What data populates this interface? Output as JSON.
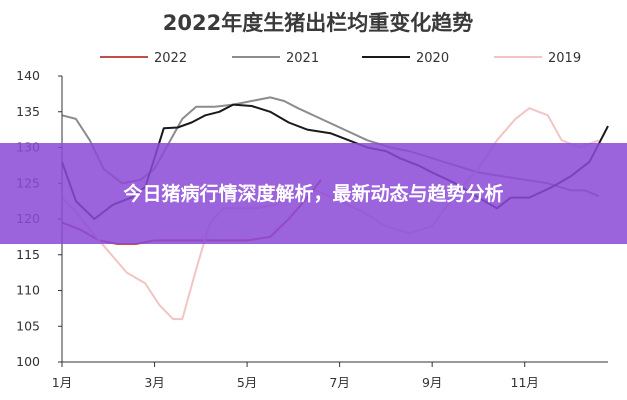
{
  "chart_data": {
    "type": "line",
    "title": "2022年度生猪出栏均重变化趋势",
    "xlabel": "",
    "ylabel": "",
    "ylim": [
      100,
      140
    ],
    "yticks": [
      100,
      105,
      110,
      115,
      120,
      125,
      130,
      135,
      140
    ],
    "xlim": [
      1,
      12.8
    ],
    "xticks": [
      {
        "value": 1,
        "label": "1月"
      },
      {
        "value": 3,
        "label": "3月"
      },
      {
        "value": 5,
        "label": "5月"
      },
      {
        "value": 7,
        "label": "7月"
      },
      {
        "value": 9,
        "label": "9月"
      },
      {
        "value": 11,
        "label": "11月"
      }
    ],
    "grid": false,
    "legend_position": "top",
    "series": [
      {
        "name": "2022",
        "color": "#c0504d",
        "points": [
          [
            1,
            119.5
          ],
          [
            1.4,
            118.5
          ],
          [
            1.8,
            117
          ],
          [
            2.2,
            116.5
          ],
          [
            2.6,
            116.5
          ],
          [
            3,
            117
          ],
          [
            3.5,
            117
          ],
          [
            4,
            117
          ],
          [
            4.5,
            117
          ],
          [
            5,
            117
          ],
          [
            5.5,
            117.5
          ],
          [
            5.9,
            120
          ],
          [
            6.3,
            123
          ],
          [
            6.6,
            125.5
          ]
        ]
      },
      {
        "name": "2021",
        "color": "#8c8c8c",
        "points": [
          [
            1,
            134.5
          ],
          [
            1.3,
            134
          ],
          [
            1.6,
            131
          ],
          [
            1.9,
            127
          ],
          [
            2.3,
            125
          ],
          [
            2.7,
            125.5
          ],
          [
            3,
            127
          ],
          [
            3.3,
            130.5
          ],
          [
            3.6,
            134
          ],
          [
            3.9,
            135.7
          ],
          [
            4.3,
            135.7
          ],
          [
            4.7,
            136
          ],
          [
            5.1,
            136.5
          ],
          [
            5.5,
            137
          ],
          [
            5.8,
            136.5
          ],
          [
            6.1,
            135.5
          ],
          [
            6.6,
            134
          ],
          [
            7.1,
            132.5
          ],
          [
            7.6,
            131
          ],
          [
            8.1,
            130
          ],
          [
            8.5,
            129.5
          ],
          [
            9,
            128.5
          ],
          [
            9.5,
            127.5
          ],
          [
            10,
            126.5
          ],
          [
            10.5,
            126
          ],
          [
            11,
            125.5
          ],
          [
            11.5,
            125
          ],
          [
            12,
            124
          ],
          [
            12.3,
            124
          ],
          [
            12.6,
            123.2
          ]
        ]
      },
      {
        "name": "2020",
        "color": "#1a1a1a",
        "points": [
          [
            1,
            128
          ],
          [
            1.3,
            122.5
          ],
          [
            1.7,
            120
          ],
          [
            2.1,
            122
          ],
          [
            2.5,
            123
          ],
          [
            2.8,
            124.5
          ],
          [
            3,
            128.5
          ],
          [
            3.2,
            132.7
          ],
          [
            3.5,
            132.8
          ],
          [
            3.8,
            133.5
          ],
          [
            4.1,
            134.5
          ],
          [
            4.4,
            135
          ],
          [
            4.7,
            136
          ],
          [
            5.1,
            135.8
          ],
          [
            5.5,
            135
          ],
          [
            5.9,
            133.5
          ],
          [
            6.3,
            132.5
          ],
          [
            6.8,
            132
          ],
          [
            7.2,
            131
          ],
          [
            7.6,
            130
          ],
          [
            8,
            129.5
          ],
          [
            8.3,
            128.5
          ],
          [
            8.7,
            127.5
          ],
          [
            9,
            126.5
          ],
          [
            9.5,
            125
          ],
          [
            10,
            123
          ],
          [
            10.4,
            121.5
          ],
          [
            10.7,
            123
          ],
          [
            11.1,
            123
          ],
          [
            11.6,
            124.5
          ],
          [
            12,
            126
          ],
          [
            12.4,
            128
          ],
          [
            12.8,
            133
          ]
        ]
      },
      {
        "name": "2019",
        "color": "#f2c4c4",
        "points": [
          [
            1,
            123
          ],
          [
            1.3,
            121
          ],
          [
            1.6,
            118.5
          ],
          [
            2,
            115.5
          ],
          [
            2.4,
            112.5
          ],
          [
            2.8,
            111
          ],
          [
            3.1,
            108
          ],
          [
            3.4,
            106
          ],
          [
            3.6,
            106
          ],
          [
            3.9,
            113
          ],
          [
            4.2,
            119.5
          ],
          [
            4.5,
            121.5
          ],
          [
            4.8,
            121.5
          ],
          [
            5.2,
            121.5
          ],
          [
            5.6,
            122
          ],
          [
            6,
            123.5
          ],
          [
            6.5,
            124
          ],
          [
            7,
            122.5
          ],
          [
            7.5,
            121
          ],
          [
            8,
            119
          ],
          [
            8.5,
            118
          ],
          [
            9,
            119
          ],
          [
            9.5,
            123.5
          ],
          [
            10,
            127
          ],
          [
            10.4,
            131
          ],
          [
            10.8,
            134
          ],
          [
            11.1,
            135.5
          ],
          [
            11.5,
            134.5
          ],
          [
            11.8,
            131
          ],
          [
            12.2,
            130
          ],
          [
            12.6,
            131
          ]
        ]
      }
    ]
  },
  "overlay": {
    "headline": "今日猪病行情深度解析，最新动态与趋势分析"
  }
}
